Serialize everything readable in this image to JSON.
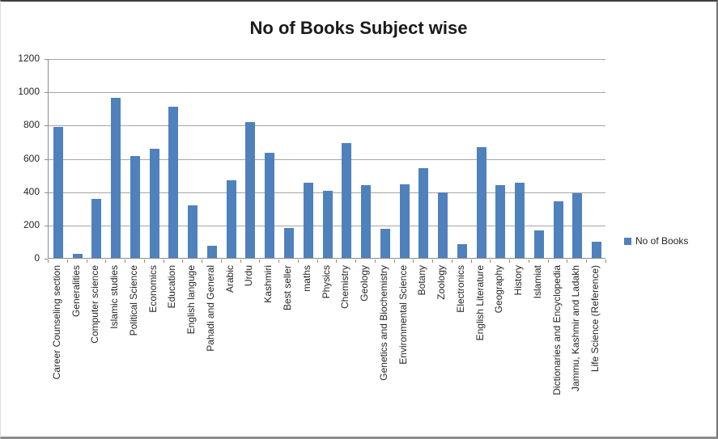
{
  "legend": {
    "label": "No of Books",
    "marker_color": "#4f81bd"
  },
  "colors": {
    "bar": "#4f81bd",
    "gridline": "#a6a6a6",
    "axis": "#8c8c8c",
    "text": "#262626",
    "title": "#1a1a1a"
  },
  "chart_data": {
    "type": "bar",
    "title": "No of Books Subject wise",
    "series_name": "No of Books",
    "categories": [
      "Career Counseling section",
      "Generalities",
      "Computer science",
      "Islamic studies",
      "Political Science",
      "Economics",
      "Education",
      "English languge",
      "Pahadi and General",
      "Arabic",
      "Urdu",
      "Kashmiri",
      "Best seller",
      "maths",
      "Physics",
      "Chemistry",
      "Geology",
      "Genetics and Biochemistry",
      "Environmental Science",
      "Botany",
      "Zoology",
      "Electronics",
      "English Literature",
      "Geography",
      "History",
      "Islamiat",
      "Dictionaries and Encyclopedia",
      "Jammu, Kashmir and Ladakh",
      "Life Science (Reference)"
    ],
    "values": [
      785,
      25,
      355,
      960,
      610,
      655,
      910,
      315,
      75,
      465,
      815,
      630,
      180,
      450,
      405,
      690,
      435,
      175,
      440,
      540,
      395,
      85,
      665,
      435,
      450,
      165,
      340,
      390,
      95
    ],
    "xlabel": "",
    "ylabel": "",
    "ylim": [
      0,
      1200
    ],
    "yticks": [
      0,
      200,
      400,
      600,
      800,
      1000,
      1200
    ],
    "grid": true,
    "legend_position": "right"
  }
}
